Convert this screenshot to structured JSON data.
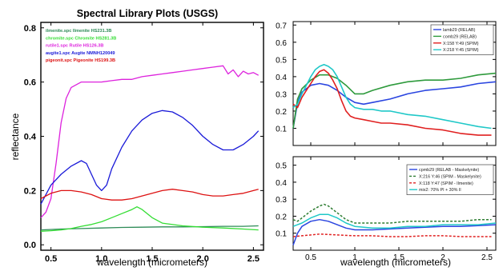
{
  "chart_data": [
    {
      "type": "line",
      "title": "Spectral Library Plots (USGS)",
      "xlabel": "wavelength (micrometers)",
      "ylabel": "reflectance",
      "xlim": [
        0.4,
        2.6
      ],
      "ylim": [
        -0.02,
        0.82
      ],
      "xticks": [
        "0.5",
        "1.0",
        "1.5",
        "2.0",
        "2.5"
      ],
      "yticks": [
        "0.0",
        "0.2",
        "0.4",
        "0.6",
        "0.8"
      ],
      "legend_position": "top-left",
      "series": [
        {
          "name": "ilmenite.spc Ilmenite HS231.3B",
          "color": "#2e8b57",
          "x": [
            0.4,
            0.6,
            0.8,
            1.0,
            1.2,
            1.4,
            1.6,
            1.8,
            2.0,
            2.2,
            2.4,
            2.55
          ],
          "y": [
            0.055,
            0.058,
            0.06,
            0.062,
            0.064,
            0.065,
            0.066,
            0.066,
            0.067,
            0.068,
            0.068,
            0.07
          ]
        },
        {
          "name": "chromite.spc Chromite HS281.3B",
          "color": "#33dd33",
          "x": [
            0.4,
            0.5,
            0.6,
            0.7,
            0.8,
            0.9,
            1.0,
            1.1,
            1.2,
            1.3,
            1.35,
            1.4,
            1.5,
            1.6,
            1.8,
            2.0,
            2.2,
            2.4,
            2.55
          ],
          "y": [
            0.05,
            0.052,
            0.055,
            0.06,
            0.068,
            0.075,
            0.085,
            0.1,
            0.115,
            0.13,
            0.14,
            0.13,
            0.1,
            0.08,
            0.07,
            0.065,
            0.062,
            0.058,
            0.055
          ]
        },
        {
          "name": "rutile1.spc Rutile HS126.3B",
          "color": "#dd22dd",
          "x": [
            0.4,
            0.45,
            0.5,
            0.55,
            0.6,
            0.65,
            0.7,
            0.8,
            0.9,
            1.0,
            1.1,
            1.2,
            1.3,
            1.4,
            1.5,
            1.6,
            1.7,
            1.8,
            1.9,
            2.0,
            2.1,
            2.2,
            2.25,
            2.3,
            2.35,
            2.4,
            2.45,
            2.5,
            2.55
          ],
          "y": [
            0.1,
            0.12,
            0.17,
            0.3,
            0.45,
            0.54,
            0.58,
            0.6,
            0.6,
            0.6,
            0.605,
            0.61,
            0.61,
            0.62,
            0.625,
            0.63,
            0.635,
            0.64,
            0.645,
            0.65,
            0.655,
            0.66,
            0.63,
            0.645,
            0.62,
            0.64,
            0.63,
            0.635,
            0.625
          ]
        },
        {
          "name": "augite1.spc Augite NMNH120049",
          "color": "#1a1ad8",
          "x": [
            0.4,
            0.5,
            0.6,
            0.7,
            0.8,
            0.85,
            0.9,
            0.95,
            1.0,
            1.05,
            1.1,
            1.2,
            1.3,
            1.4,
            1.5,
            1.6,
            1.7,
            1.8,
            1.9,
            2.0,
            2.1,
            2.2,
            2.3,
            2.4,
            2.5,
            2.55
          ],
          "y": [
            0.15,
            0.22,
            0.26,
            0.29,
            0.31,
            0.3,
            0.26,
            0.22,
            0.2,
            0.22,
            0.28,
            0.36,
            0.42,
            0.46,
            0.485,
            0.495,
            0.49,
            0.47,
            0.44,
            0.4,
            0.37,
            0.35,
            0.35,
            0.37,
            0.4,
            0.42
          ]
        },
        {
          "name": "pigeonit.spc Pigeonite HS199.3B",
          "color": "#dd1111",
          "x": [
            0.4,
            0.5,
            0.6,
            0.7,
            0.8,
            0.9,
            1.0,
            1.1,
            1.2,
            1.3,
            1.4,
            1.5,
            1.6,
            1.7,
            1.8,
            1.9,
            2.0,
            2.1,
            2.2,
            2.3,
            2.4,
            2.5,
            2.55
          ],
          "y": [
            0.17,
            0.19,
            0.2,
            0.2,
            0.195,
            0.185,
            0.17,
            0.165,
            0.165,
            0.17,
            0.18,
            0.19,
            0.2,
            0.205,
            0.2,
            0.195,
            0.185,
            0.18,
            0.18,
            0.185,
            0.19,
            0.2,
            0.205
          ]
        }
      ]
    },
    {
      "type": "line",
      "xlabel": "",
      "ylabel": "",
      "xlim": [
        0.3,
        2.6
      ],
      "ylim": [
        0.0,
        0.72
      ],
      "xticks": [],
      "yticks": [
        "0.1",
        "0.2",
        "0.3",
        "0.4",
        "0.5",
        "0.6",
        "0.7"
      ],
      "legend_position": "top-right",
      "series": [
        {
          "name": "lamb29 (RELAB)",
          "color": "#2a45e0",
          "dash": "",
          "x": [
            0.3,
            0.35,
            0.4,
            0.5,
            0.6,
            0.7,
            0.8,
            0.9,
            1.0,
            1.1,
            1.2,
            1.4,
            1.6,
            1.8,
            2.0,
            2.2,
            2.4,
            2.6
          ],
          "y": [
            0.1,
            0.25,
            0.31,
            0.35,
            0.36,
            0.35,
            0.32,
            0.28,
            0.25,
            0.24,
            0.25,
            0.27,
            0.3,
            0.32,
            0.33,
            0.34,
            0.36,
            0.37
          ]
        },
        {
          "name": "comb29 (RELAB)",
          "color": "#2e9a3c",
          "dash": "",
          "x": [
            0.3,
            0.35,
            0.4,
            0.5,
            0.6,
            0.7,
            0.8,
            0.9,
            1.0,
            1.1,
            1.2,
            1.4,
            1.6,
            1.8,
            2.0,
            2.2,
            2.4,
            2.6
          ],
          "y": [
            0.1,
            0.27,
            0.33,
            0.38,
            0.41,
            0.41,
            0.39,
            0.35,
            0.3,
            0.3,
            0.32,
            0.35,
            0.37,
            0.38,
            0.38,
            0.39,
            0.41,
            0.42
          ]
        },
        {
          "name": "X:158 Y:49 (SPIM)",
          "color": "#e02020",
          "dash": "",
          "x": [
            0.3,
            0.35,
            0.4,
            0.45,
            0.5,
            0.55,
            0.6,
            0.65,
            0.7,
            0.75,
            0.8,
            0.85,
            0.9,
            0.95,
            1.0,
            1.1,
            1.2,
            1.3,
            1.4,
            1.6,
            1.8,
            2.0,
            2.2,
            2.4,
            2.55
          ],
          "y": [
            0.24,
            0.22,
            0.28,
            0.32,
            0.36,
            0.4,
            0.43,
            0.44,
            0.42,
            0.38,
            0.33,
            0.26,
            0.2,
            0.17,
            0.16,
            0.15,
            0.14,
            0.13,
            0.13,
            0.12,
            0.1,
            0.09,
            0.07,
            0.06,
            0.06
          ]
        },
        {
          "name": "X:218 Y:45 (SPIM)",
          "color": "#20c8c8",
          "dash": "",
          "x": [
            0.3,
            0.35,
            0.4,
            0.45,
            0.5,
            0.55,
            0.6,
            0.65,
            0.7,
            0.75,
            0.8,
            0.85,
            0.9,
            0.95,
            1.0,
            1.1,
            1.2,
            1.3,
            1.4,
            1.6,
            1.8,
            2.0,
            2.2,
            2.4,
            2.55
          ],
          "y": [
            0.22,
            0.24,
            0.3,
            0.35,
            0.4,
            0.44,
            0.46,
            0.47,
            0.46,
            0.44,
            0.4,
            0.34,
            0.28,
            0.24,
            0.22,
            0.21,
            0.21,
            0.2,
            0.2,
            0.18,
            0.17,
            0.15,
            0.13,
            0.11,
            0.1
          ]
        }
      ]
    },
    {
      "type": "line",
      "xlabel": "wavelength (micrometers)",
      "ylabel": "",
      "xlim": [
        0.3,
        2.6
      ],
      "ylim": [
        0.0,
        0.55
      ],
      "xticks": [
        "0.5",
        "1",
        "1.5",
        "2",
        "2.5"
      ],
      "yticks": [
        "0.1",
        "0.2",
        "0.3",
        "0.4",
        "0.5"
      ],
      "legend_position": "top-right",
      "series": [
        {
          "name": "cpmb29 (RELAB - Maskelynite)",
          "color": "#2a45e0",
          "dash": "",
          "x": [
            0.3,
            0.35,
            0.4,
            0.5,
            0.6,
            0.7,
            0.8,
            0.9,
            1.0,
            1.2,
            1.4,
            1.6,
            1.8,
            2.0,
            2.2,
            2.4,
            2.6
          ],
          "y": [
            0.03,
            0.1,
            0.14,
            0.17,
            0.18,
            0.17,
            0.15,
            0.13,
            0.12,
            0.12,
            0.125,
            0.13,
            0.135,
            0.14,
            0.14,
            0.145,
            0.15
          ]
        },
        {
          "name": "X:216 Y:46 (SPIM - Maskelynite)",
          "color": "#2e7d32",
          "dash": "3,2",
          "x": [
            0.3,
            0.35,
            0.4,
            0.5,
            0.6,
            0.65,
            0.7,
            0.8,
            0.9,
            1.0,
            1.2,
            1.4,
            1.6,
            1.8,
            2.0,
            2.2,
            2.4,
            2.55
          ],
          "y": [
            0.18,
            0.17,
            0.19,
            0.23,
            0.26,
            0.27,
            0.26,
            0.22,
            0.18,
            0.16,
            0.16,
            0.16,
            0.17,
            0.17,
            0.17,
            0.17,
            0.18,
            0.18
          ]
        },
        {
          "name": "X:118 Y:47 (SPIM - Ilmenite)",
          "color": "#e02020",
          "dash": "3,2",
          "x": [
            0.3,
            0.4,
            0.5,
            0.6,
            0.8,
            1.0,
            1.2,
            1.4,
            1.6,
            1.8,
            2.0,
            2.2,
            2.4,
            2.55
          ],
          "y": [
            0.08,
            0.085,
            0.09,
            0.095,
            0.09,
            0.085,
            0.085,
            0.08,
            0.08,
            0.085,
            0.085,
            0.08,
            0.08,
            0.08
          ]
        },
        {
          "name": "mix2: 70% Pl + 30% Il",
          "color": "#20c8c8",
          "dash": "",
          "x": [
            0.3,
            0.35,
            0.4,
            0.5,
            0.6,
            0.7,
            0.8,
            0.9,
            1.0,
            1.2,
            1.4,
            1.6,
            1.8,
            2.0,
            2.2,
            2.4,
            2.6
          ],
          "y": [
            0.14,
            0.15,
            0.16,
            0.19,
            0.21,
            0.21,
            0.19,
            0.16,
            0.14,
            0.13,
            0.13,
            0.14,
            0.14,
            0.15,
            0.15,
            0.15,
            0.16
          ]
        }
      ]
    }
  ]
}
